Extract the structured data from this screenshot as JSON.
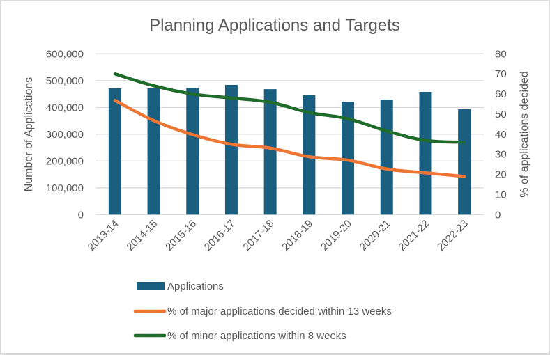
{
  "chart_data": {
    "type": "bar",
    "title": "Planning Applications and Targets",
    "categories": [
      "2013-14",
      "2014-15",
      "2015-16",
      "2016-17",
      "2017-18",
      "2018-19",
      "2019-20",
      "2020-21",
      "2021-22",
      "2022-23"
    ],
    "xlabel": "",
    "ylabel": "Number of Applications",
    "y2label": "% of applications decided",
    "ylim": [
      0,
      600000
    ],
    "y2lim": [
      0,
      80
    ],
    "yticks": [
      "0",
      "100,000",
      "200,000",
      "300,000",
      "400,000",
      "500,000",
      "600,000"
    ],
    "y2ticks": [
      "0",
      "10",
      "20",
      "30",
      "40",
      "50",
      "60",
      "70",
      "80"
    ],
    "grid": true,
    "legend_position": "bottom",
    "series": [
      {
        "name": "Applications",
        "type": "bar",
        "axis": "left",
        "color": "#1a5e80",
        "values": [
          471000,
          471000,
          473000,
          484000,
          468000,
          445000,
          421000,
          429000,
          458000,
          393000
        ]
      },
      {
        "name": "% of major applications decided within 13 weeks",
        "type": "line",
        "axis": "right",
        "color": "#ed7634",
        "values": [
          56.8,
          46.8,
          39.8,
          35.0,
          33.1,
          28.8,
          27.1,
          22.7,
          20.8,
          19.0
        ]
      },
      {
        "name": "% of minor applications within 8 weeks",
        "type": "line",
        "axis": "right",
        "color": "#1e6b2a",
        "values": [
          70.0,
          64.1,
          60.0,
          58.0,
          55.9,
          50.8,
          47.7,
          41.6,
          36.9,
          36.0
        ]
      }
    ]
  }
}
